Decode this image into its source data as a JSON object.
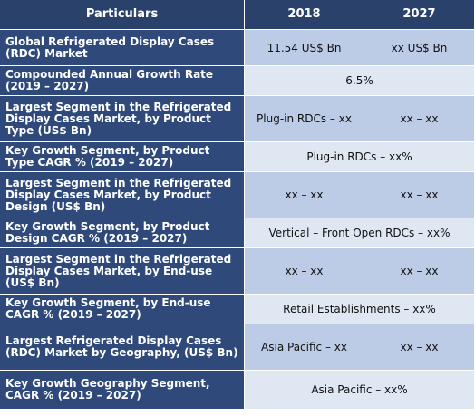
{
  "header": {
    "col1": "Particulars",
    "col2": "2018",
    "col3": "2027"
  },
  "rows": [
    {
      "label": "Global Refrigerated Display Cases (RDC) Market",
      "v2018": "11.54 US$ Bn",
      "v2027": "xx US$ Bn"
    },
    {
      "label": "Compounded Annual Growth Rate (2019 – 2027)",
      "merged": "6.5%"
    },
    {
      "label": "Largest Segment in the Refrigerated Display Cases Market, by Product Type (US$ Bn)",
      "v2018": "Plug-in RDCs – xx",
      "v2027": "xx – xx"
    },
    {
      "label": "Key Growth Segment, by Product Type CAGR % (2019 – 2027)",
      "merged": "Plug-in RDCs – xx%"
    },
    {
      "label": "Largest Segment in the Refrigerated Display Cases Market, by Product Design (US$ Bn)",
      "v2018": "xx – xx",
      "v2027": "xx – xx"
    },
    {
      "label": "Key Growth Segment, by Product Design CAGR % (2019 – 2027)",
      "merged": "Vertical – Front Open RDCs – xx%"
    },
    {
      "label": "Largest Segment in the Refrigerated Display Cases Market, by End-use (US$ Bn)",
      "v2018": "xx – xx",
      "v2027": "xx – xx"
    },
    {
      "label": "Key Growth Segment, by End-use CAGR % (2019 – 2027)",
      "merged": "Retail Establishments – xx%"
    },
    {
      "label": "Largest Refrigerated Display Cases (RDC) Market by Geography, (US$ Bn)",
      "v2018": "Asia Pacific – xx",
      "v2027": "xx – xx"
    },
    {
      "label": "Key Growth Geography Segment, CAGR % (2019 – 2027)",
      "merged": "Asia Pacific – xx%"
    }
  ]
}
